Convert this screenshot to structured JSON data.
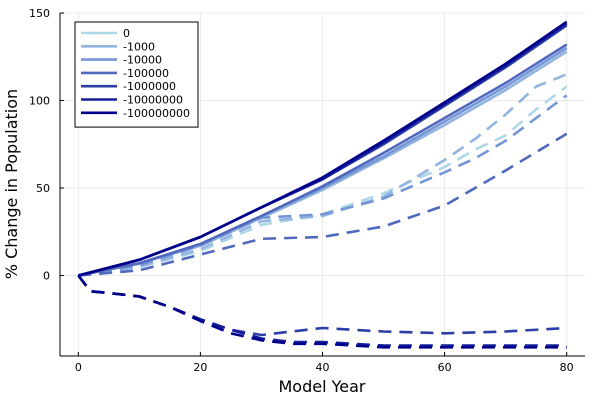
{
  "chart_data": {
    "type": "line",
    "xlabel": "Model Year",
    "ylabel": "% Change in Population",
    "xlim": [
      -3,
      83
    ],
    "ylim": [
      -46,
      150
    ],
    "xticks": [
      0,
      20,
      40,
      60,
      80
    ],
    "yticks": [
      0,
      50,
      100,
      150
    ],
    "grid": true,
    "legend_position": "top-left",
    "series": [
      {
        "name": "0",
        "color": "#add8e6",
        "solid": {
          "x": [
            0,
            10,
            20,
            30,
            40,
            50,
            60,
            70,
            80
          ],
          "y": [
            0,
            7,
            17,
            33,
            49,
            67,
            86,
            106,
            128
          ]
        },
        "dashed": {
          "x": [
            0,
            10,
            20,
            30,
            40,
            50,
            60,
            65,
            70,
            75,
            80
          ],
          "y": [
            0,
            5,
            14,
            29,
            35,
            47,
            62,
            72,
            80,
            95,
            108
          ]
        }
      },
      {
        "name": "-1000",
        "color": "#93b4e0",
        "solid": {
          "x": [
            0,
            10,
            20,
            30,
            40,
            50,
            60,
            70,
            80
          ],
          "y": [
            0,
            7,
            17,
            33,
            49,
            67,
            86,
            106,
            128
          ]
        },
        "dashed": {
          "x": [
            0,
            10,
            20,
            30,
            40,
            50,
            60,
            65,
            70,
            75,
            80
          ],
          "y": [
            0,
            5,
            15,
            31,
            34,
            45,
            66,
            78,
            92,
            108,
            115
          ]
        }
      },
      {
        "name": "-10000",
        "color": "#7596d6",
        "solid": {
          "x": [
            0,
            10,
            20,
            30,
            40,
            50,
            60,
            70,
            80
          ],
          "y": [
            0,
            7,
            18,
            34,
            50,
            68,
            88,
            108,
            130
          ]
        },
        "dashed": {
          "x": [
            0,
            10,
            20,
            30,
            40,
            50,
            60,
            65,
            70,
            75,
            80
          ],
          "y": [
            0,
            6,
            17,
            33,
            35,
            44,
            59,
            67,
            77,
            90,
            103
          ]
        }
      },
      {
        "name": "-100000",
        "color": "#5068bd",
        "solid": {
          "x": [
            0,
            10,
            20,
            30,
            40,
            50,
            60,
            70,
            80
          ],
          "y": [
            0,
            7,
            18,
            34,
            51,
            70,
            90,
            110,
            132
          ]
        },
        "dashed": {
          "x": [
            0,
            10,
            20,
            30,
            40,
            50,
            60,
            70,
            80
          ],
          "y": [
            0,
            3,
            12,
            21,
            22,
            28,
            40,
            60,
            81
          ]
        }
      },
      {
        "name": "-1000000",
        "color": "#2c3fa8",
        "solid": {
          "x": [
            0,
            10,
            20,
            30,
            40,
            50,
            60,
            70,
            80
          ],
          "y": [
            0,
            9,
            22,
            39,
            55,
            75,
            97,
            119,
            143
          ]
        },
        "dashed": {
          "x": [
            0,
            2,
            5,
            10,
            15,
            20,
            25,
            30,
            35,
            40,
            45,
            50,
            60,
            70,
            80
          ],
          "y": [
            0,
            -9,
            -10,
            -12,
            -18,
            -25,
            -31,
            -34,
            -32,
            -30,
            -31,
            -32,
            -33,
            -32,
            -30
          ]
        }
      },
      {
        "name": "-10000000",
        "color": "#141c99",
        "solid": {
          "x": [
            0,
            10,
            20,
            30,
            40,
            50,
            60,
            70,
            80
          ],
          "y": [
            0,
            9,
            22,
            39,
            55,
            76,
            98,
            120,
            144
          ]
        },
        "dashed": {
          "x": [
            0,
            2,
            5,
            10,
            15,
            20,
            25,
            30,
            35,
            40,
            45,
            50,
            60,
            70,
            80
          ],
          "y": [
            0,
            -9,
            -10,
            -12,
            -18,
            -25,
            -31,
            -36,
            -38,
            -38,
            -39,
            -40,
            -40,
            -40,
            -40
          ]
        }
      },
      {
        "name": "-100000000",
        "color": "#00008b",
        "solid": {
          "x": [
            0,
            10,
            20,
            30,
            40,
            50,
            60,
            70,
            80
          ],
          "y": [
            0,
            9,
            22,
            39,
            56,
            77,
            99,
            121,
            145
          ]
        },
        "dashed": {
          "x": [
            0,
            2,
            5,
            10,
            15,
            20,
            25,
            30,
            35,
            40,
            45,
            50,
            60,
            70,
            80
          ],
          "y": [
            0,
            -9,
            -10,
            -12,
            -18,
            -26,
            -33,
            -37,
            -39,
            -39,
            -40,
            -41,
            -41,
            -41,
            -41
          ]
        }
      }
    ]
  }
}
